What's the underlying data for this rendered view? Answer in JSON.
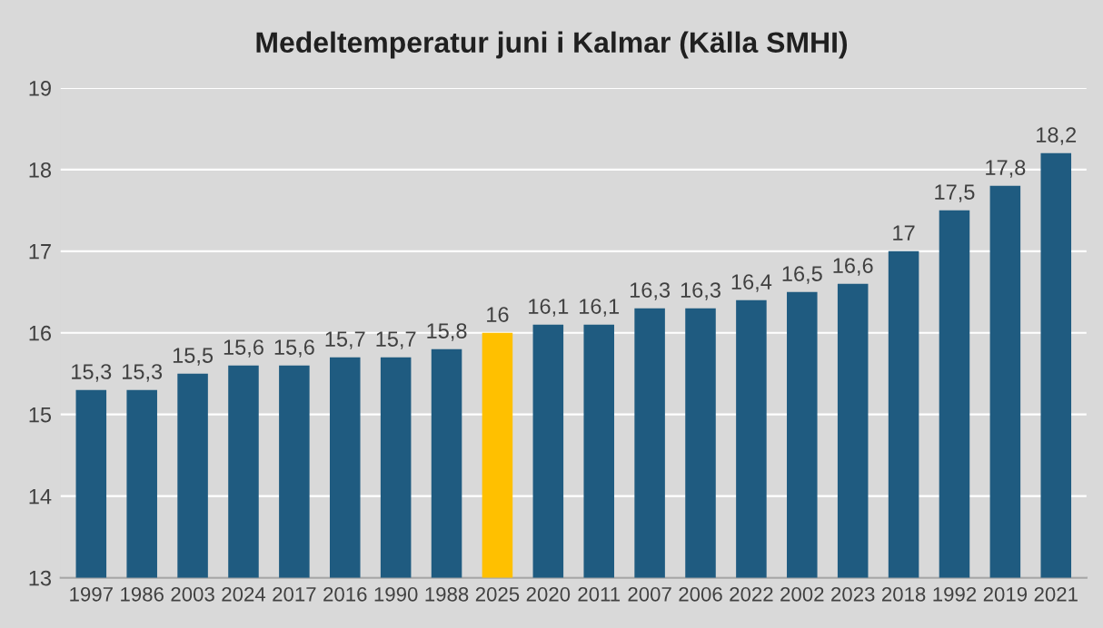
{
  "chart_data": {
    "type": "bar",
    "title": "Medeltemperatur juni i Kalmar (Källa SMHI)",
    "categories": [
      "1997",
      "1986",
      "2003",
      "2024",
      "2017",
      "2016",
      "1990",
      "1988",
      "2025",
      "2020",
      "2011",
      "2007",
      "2006",
      "2022",
      "2002",
      "2023",
      "2018",
      "1992",
      "2019",
      "2021"
    ],
    "values": [
      15.3,
      15.3,
      15.5,
      15.6,
      15.6,
      15.7,
      15.7,
      15.8,
      16,
      16.1,
      16.1,
      16.3,
      16.3,
      16.4,
      16.5,
      16.6,
      17,
      17.5,
      17.8,
      18.2
    ],
    "value_labels": [
      "15,3",
      "15,3",
      "15,5",
      "15,6",
      "15,6",
      "15,7",
      "15,7",
      "15,8",
      "16",
      "16,1",
      "16,1",
      "16,3",
      "16,3",
      "16,4",
      "16,5",
      "16,6",
      "17",
      "17,5",
      "17,8",
      "18,2"
    ],
    "colors": [
      "#1f5b80",
      "#1f5b80",
      "#1f5b80",
      "#1f5b80",
      "#1f5b80",
      "#1f5b80",
      "#1f5b80",
      "#1f5b80",
      "#ffc000",
      "#1f5b80",
      "#1f5b80",
      "#1f5b80",
      "#1f5b80",
      "#1f5b80",
      "#1f5b80",
      "#1f5b80",
      "#1f5b80",
      "#1f5b80",
      "#1f5b80",
      "#1f5b80"
    ],
    "ylim": [
      13,
      19
    ],
    "yticks": [
      13,
      14,
      15,
      16,
      17,
      18,
      19
    ],
    "grid": "y"
  }
}
